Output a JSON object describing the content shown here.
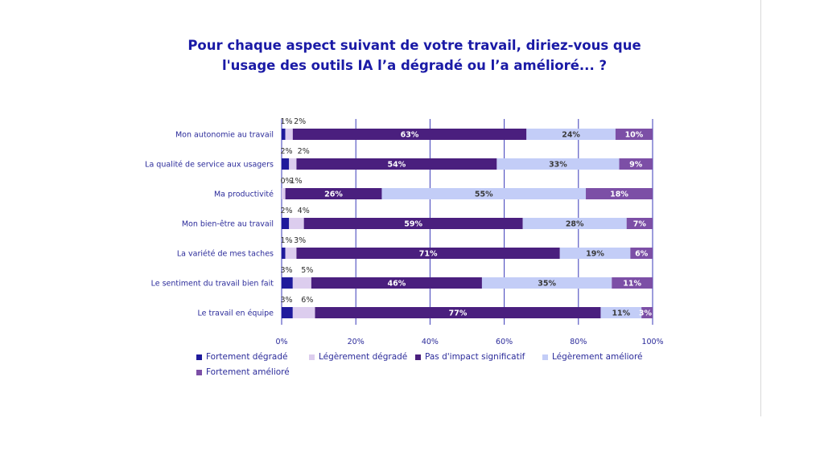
{
  "chart_data": {
    "type": "bar",
    "orientation": "horizontal",
    "stacked": true,
    "title": "Pour chaque aspect suivant de votre travail, diriez-vous que l'usage des outils IA l’a dégradé ou l’a amélioré... ?",
    "title_lines": [
      "Pour chaque aspect suivant de votre travail, diriez-vous que",
      "l'usage des outils IA l’a dégradé ou l’a amélioré... ?"
    ],
    "categories": [
      "Mon autonomie au travail",
      "La qualité de service aux usagers",
      "Ma productivité",
      "Mon bien-être au travail",
      "La variété de mes taches",
      "Le sentiment du travail bien fait",
      "Le travail en équipe"
    ],
    "series": [
      {
        "name": "Fortement dégradé",
        "color": "#1f1a9c",
        "values": [
          1,
          2,
          0,
          2,
          1,
          3,
          3
        ]
      },
      {
        "name": "Légèrement dégradé",
        "color": "#dccdee",
        "values": [
          2,
          2,
          1,
          4,
          3,
          5,
          6
        ]
      },
      {
        "name": "Pas d'impact significatif",
        "color": "#4a1f7e",
        "values": [
          63,
          54,
          26,
          59,
          71,
          46,
          77
        ]
      },
      {
        "name": "Légèrement amélioré",
        "color": "#c3cdf7",
        "values": [
          24,
          33,
          55,
          28,
          19,
          35,
          11
        ]
      },
      {
        "name": "Fortement amélioré",
        "color": "#7c4fa6",
        "values": [
          10,
          9,
          18,
          7,
          6,
          11,
          3
        ]
      }
    ],
    "xlim": [
      0,
      100
    ],
    "x_ticks": [
      "0%",
      "20%",
      "40%",
      "60%",
      "80%",
      "100%"
    ],
    "value_suffix": "%",
    "grid": true,
    "legend_position": "bottom"
  }
}
